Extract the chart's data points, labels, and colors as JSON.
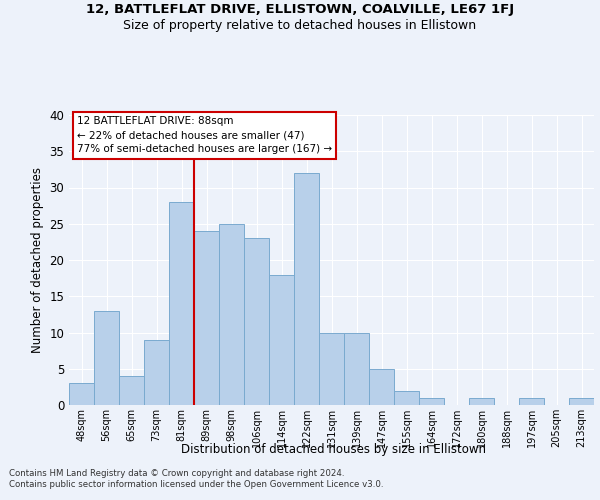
{
  "title1": "12, BATTLEFLAT DRIVE, ELLISTOWN, COALVILLE, LE67 1FJ",
  "title2": "Size of property relative to detached houses in Ellistown",
  "xlabel": "Distribution of detached houses by size in Ellistown",
  "ylabel": "Number of detached properties",
  "footnote1": "Contains HM Land Registry data © Crown copyright and database right 2024.",
  "footnote2": "Contains public sector information licensed under the Open Government Licence v3.0.",
  "ann_line1": "12 BATTLEFLAT DRIVE: 88sqm",
  "ann_line2": "← 22% of detached houses are smaller (47)",
  "ann_line3": "77% of semi-detached houses are larger (167) →",
  "categories": [
    "48sqm",
    "56sqm",
    "65sqm",
    "73sqm",
    "81sqm",
    "89sqm",
    "98sqm",
    "106sqm",
    "114sqm",
    "122sqm",
    "131sqm",
    "139sqm",
    "147sqm",
    "155sqm",
    "164sqm",
    "172sqm",
    "180sqm",
    "188sqm",
    "197sqm",
    "205sqm",
    "213sqm"
  ],
  "values": [
    3,
    13,
    4,
    9,
    28,
    24,
    25,
    23,
    18,
    32,
    10,
    10,
    5,
    2,
    1,
    0,
    1,
    0,
    1,
    0,
    1
  ],
  "bar_color": "#b8d0ea",
  "bar_edge_color": "#7aaacf",
  "vline_color": "#cc0000",
  "bg_color": "#edf2fa",
  "grid_color": "#ffffff",
  "ann_edge_color": "#cc0000",
  "ann_bg_color": "#ffffff",
  "ylim_max": 40,
  "yticks": [
    0,
    5,
    10,
    15,
    20,
    25,
    30,
    35,
    40
  ]
}
